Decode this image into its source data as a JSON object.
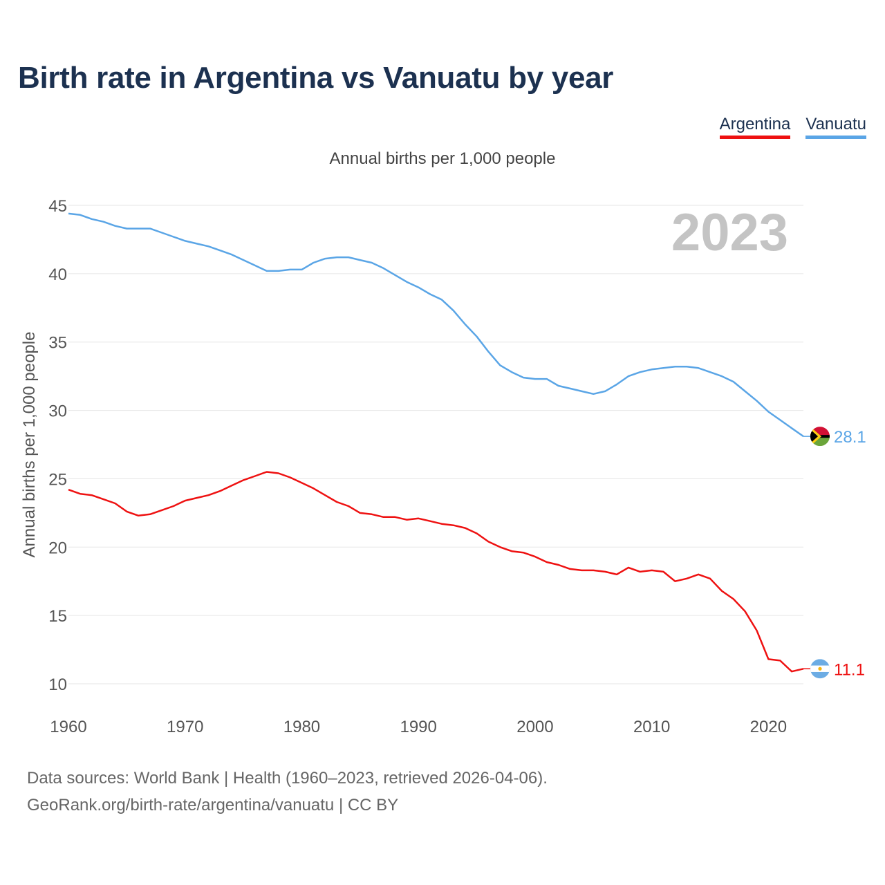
{
  "title": "Birth rate in Argentina vs Vanuatu by year",
  "legend": [
    {
      "label": "Argentina",
      "color": "#ee1111"
    },
    {
      "label": "Vanuatu",
      "color": "#5aa5e6"
    }
  ],
  "subtitle": "Annual births per 1,000 people",
  "year_label": "2023",
  "source_line1": "Data sources: World Bank | Health (1960–2023, retrieved 2026-04-06).",
  "source_line2": "GeoRank.org/birth-rate/argentina/vanuatu | CC BY",
  "chart_data": {
    "type": "line",
    "title": "Birth rate in Argentina vs Vanuatu by year",
    "subtitle": "Annual births per 1,000 people",
    "xlabel": "",
    "ylabel": "Annual births per 1,000 people",
    "xlim": [
      1960,
      2023
    ],
    "ylim": [
      10,
      45
    ],
    "yticks": [
      10,
      15,
      20,
      25,
      30,
      35,
      40,
      45
    ],
    "xticks": [
      1960,
      1970,
      1980,
      1990,
      2000,
      2010,
      2020
    ],
    "grid": true,
    "legend_position": "top-right",
    "x": [
      1960,
      1961,
      1962,
      1963,
      1964,
      1965,
      1966,
      1967,
      1968,
      1969,
      1970,
      1971,
      1972,
      1973,
      1974,
      1975,
      1976,
      1977,
      1978,
      1979,
      1980,
      1981,
      1982,
      1983,
      1984,
      1985,
      1986,
      1987,
      1988,
      1989,
      1990,
      1991,
      1992,
      1993,
      1994,
      1995,
      1996,
      1997,
      1998,
      1999,
      2000,
      2001,
      2002,
      2003,
      2004,
      2005,
      2006,
      2007,
      2008,
      2009,
      2010,
      2011,
      2012,
      2013,
      2014,
      2015,
      2016,
      2017,
      2018,
      2019,
      2020,
      2021,
      2022,
      2023
    ],
    "series": [
      {
        "name": "Argentina",
        "color": "#ee1111",
        "end_label": "11.1",
        "values": [
          24.2,
          23.9,
          23.8,
          23.5,
          23.2,
          22.6,
          22.3,
          22.4,
          22.7,
          23.0,
          23.4,
          23.6,
          23.8,
          24.1,
          24.5,
          24.9,
          25.2,
          25.5,
          25.4,
          25.1,
          24.7,
          24.3,
          23.8,
          23.3,
          23.0,
          22.5,
          22.4,
          22.2,
          22.2,
          22.0,
          22.1,
          21.9,
          21.7,
          21.6,
          21.4,
          21.0,
          20.4,
          20.0,
          19.7,
          19.6,
          19.3,
          18.9,
          18.7,
          18.4,
          18.3,
          18.3,
          18.2,
          18.0,
          18.5,
          18.2,
          18.3,
          18.2,
          17.5,
          17.7,
          18.0,
          17.7,
          16.8,
          16.2,
          15.3,
          13.9,
          11.8,
          11.7,
          10.9,
          11.1
        ]
      },
      {
        "name": "Vanuatu",
        "color": "#5aa5e6",
        "end_label": "28.1",
        "values": [
          44.4,
          44.3,
          44.0,
          43.8,
          43.5,
          43.3,
          43.3,
          43.3,
          43.0,
          42.7,
          42.4,
          42.2,
          42.0,
          41.7,
          41.4,
          41.0,
          40.6,
          40.2,
          40.2,
          40.3,
          40.3,
          40.8,
          41.1,
          41.2,
          41.2,
          41.0,
          40.8,
          40.4,
          39.9,
          39.4,
          39.0,
          38.5,
          38.1,
          37.3,
          36.3,
          35.4,
          34.3,
          33.3,
          32.8,
          32.4,
          32.3,
          32.3,
          31.8,
          31.6,
          31.4,
          31.2,
          31.4,
          31.9,
          32.5,
          32.8,
          33.0,
          33.1,
          33.2,
          33.2,
          33.1,
          32.8,
          32.5,
          32.1,
          31.4,
          30.7,
          29.9,
          29.3,
          28.7,
          28.1
        ]
      }
    ]
  }
}
